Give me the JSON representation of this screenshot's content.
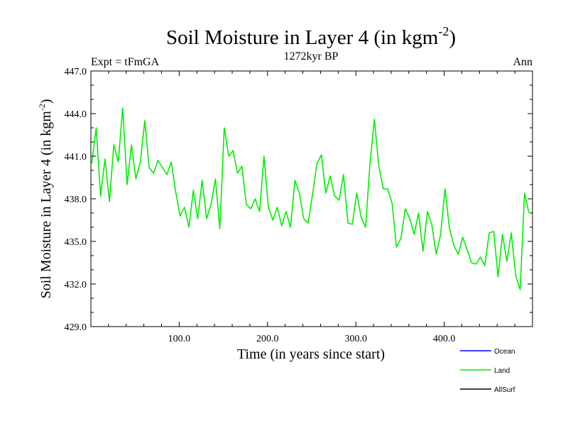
{
  "chart_data": {
    "type": "line",
    "title": "Soil Moisture in Layer 4 (in kgm",
    "title_sup": "-2",
    "title_close": ")",
    "subtitle": "1272kyr BP",
    "left_label": "Expt = tFmGA",
    "right_label": "Ann",
    "xlabel": "Time (in years since start)",
    "ylabel": "Soil Moisture in Layer 4 (in kgm",
    "ylabel_sup": "-2",
    "ylabel_close": ")",
    "xlim": [
      0,
      500
    ],
    "ylim": [
      429,
      447
    ],
    "x_ticks": [
      100,
      200,
      300,
      400
    ],
    "x_tick_labels": [
      "100.0",
      "200.0",
      "300.0",
      "400.0"
    ],
    "y_ticks": [
      429,
      432,
      435,
      438,
      441,
      444,
      447
    ],
    "y_tick_labels": [
      "429.0",
      "432.0",
      "435.0",
      "438.0",
      "441.0",
      "444.0",
      "447.0"
    ],
    "legend": [
      {
        "name": "Ocean",
        "color": "#0000ff"
      },
      {
        "name": "Land",
        "color": "#00ee00"
      },
      {
        "name": "AllSurf",
        "color": "#000000"
      }
    ],
    "series": [
      {
        "name": "Land",
        "color": "#00ee00",
        "x_start": 1,
        "x_step": 5,
        "values": [
          440.5,
          443.0,
          438.2,
          440.8,
          437.8,
          441.8,
          440.6,
          444.4,
          439.0,
          441.8,
          439.4,
          440.6,
          443.5,
          440.2,
          439.8,
          440.7,
          440.2,
          439.7,
          440.6,
          438.5,
          436.8,
          437.4,
          436.0,
          438.6,
          436.6,
          439.3,
          436.6,
          437.6,
          439.4,
          435.9,
          443.0,
          441.0,
          441.4,
          439.8,
          440.3,
          437.6,
          437.3,
          438.0,
          437.1,
          441.0,
          437.4,
          436.5,
          437.4,
          436.1,
          437.1,
          436.0,
          439.3,
          438.4,
          436.6,
          436.3,
          438.3,
          440.5,
          441.1,
          438.4,
          439.6,
          438.2,
          437.9,
          439.7,
          436.3,
          436.2,
          438.4,
          436.7,
          436.0,
          440.5,
          443.6,
          440.3,
          438.7,
          438.7,
          437.7,
          434.6,
          435.2,
          437.3,
          436.6,
          435.5,
          437.0,
          434.3,
          437.1,
          436.2,
          434.1,
          435.5,
          438.7,
          435.9,
          434.7,
          434.1,
          435.3,
          434.4,
          433.5,
          433.4,
          433.9,
          433.3,
          435.6,
          435.7,
          432.5,
          435.5,
          433.6,
          435.6,
          432.6,
          431.6,
          438.4,
          437.0
        ]
      }
    ]
  }
}
